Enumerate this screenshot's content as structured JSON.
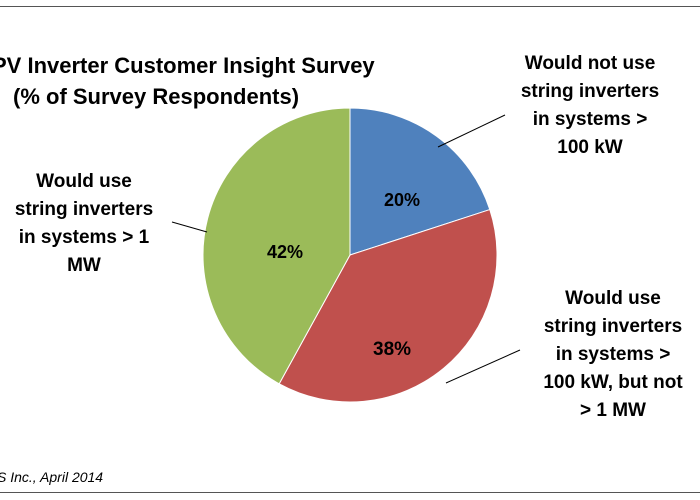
{
  "chart_data": {
    "type": "pie",
    "title_lines": [
      "PV Inverter Customer Insight Survey",
      "(% of Survey Respondents)"
    ],
    "slices": [
      {
        "label_lines": [
          "Would not use",
          "string inverters",
          "in systems >",
          "100 kW"
        ],
        "value": 20,
        "display": "20%",
        "color": "#4F81BD"
      },
      {
        "label_lines": [
          "Would use",
          "string inverters",
          "in systems >",
          "100 kW, but not",
          "> 1 MW"
        ],
        "value": 38,
        "display": "38%",
        "color": "#C0504D"
      },
      {
        "label_lines": [
          "Would use",
          "string inverters",
          "in systems > 1",
          "MW"
        ],
        "value": 42,
        "display": "42%",
        "color": "#9BBB59"
      }
    ],
    "start_angle_deg": 0,
    "direction": "clockwise",
    "legend": "none",
    "source": "S Inc., April 2014"
  }
}
